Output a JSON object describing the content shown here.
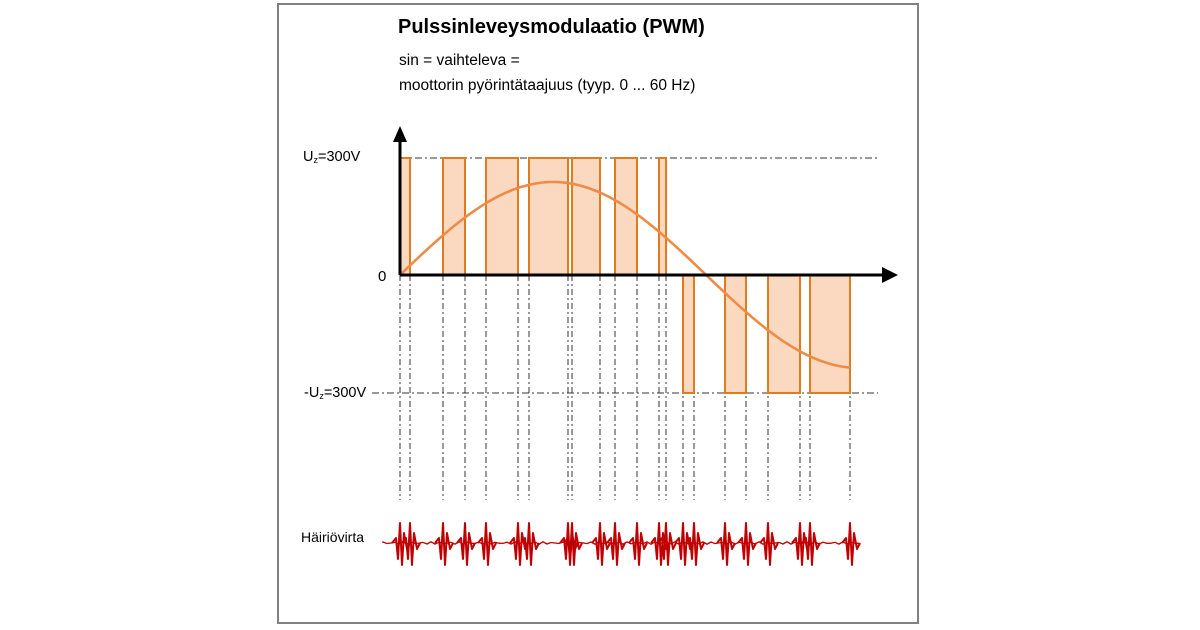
{
  "title": "Pulssinleveysmodulaatio (PWM)",
  "subtitle_line1": "sin = vaihteleva =",
  "subtitle_line2": "moottorin pyörintätaajuus (tyyp. 0 ... 60 Hz)",
  "labels": {
    "uz_pre": "U",
    "uz_sub": "z",
    "uz_post": "=300V",
    "zero": "0",
    "neg_uz_pre": "-U",
    "neg_uz_sub": "z",
    "neg_uz_post": "=300V",
    "noise": "Häiriövirta"
  },
  "colors": {
    "pulse_fill": "#fbd9c1",
    "pulse_stroke": "#e07b1f",
    "sine": "#ee8c46",
    "axis": "#000000",
    "noise": "#c00000"
  }
}
